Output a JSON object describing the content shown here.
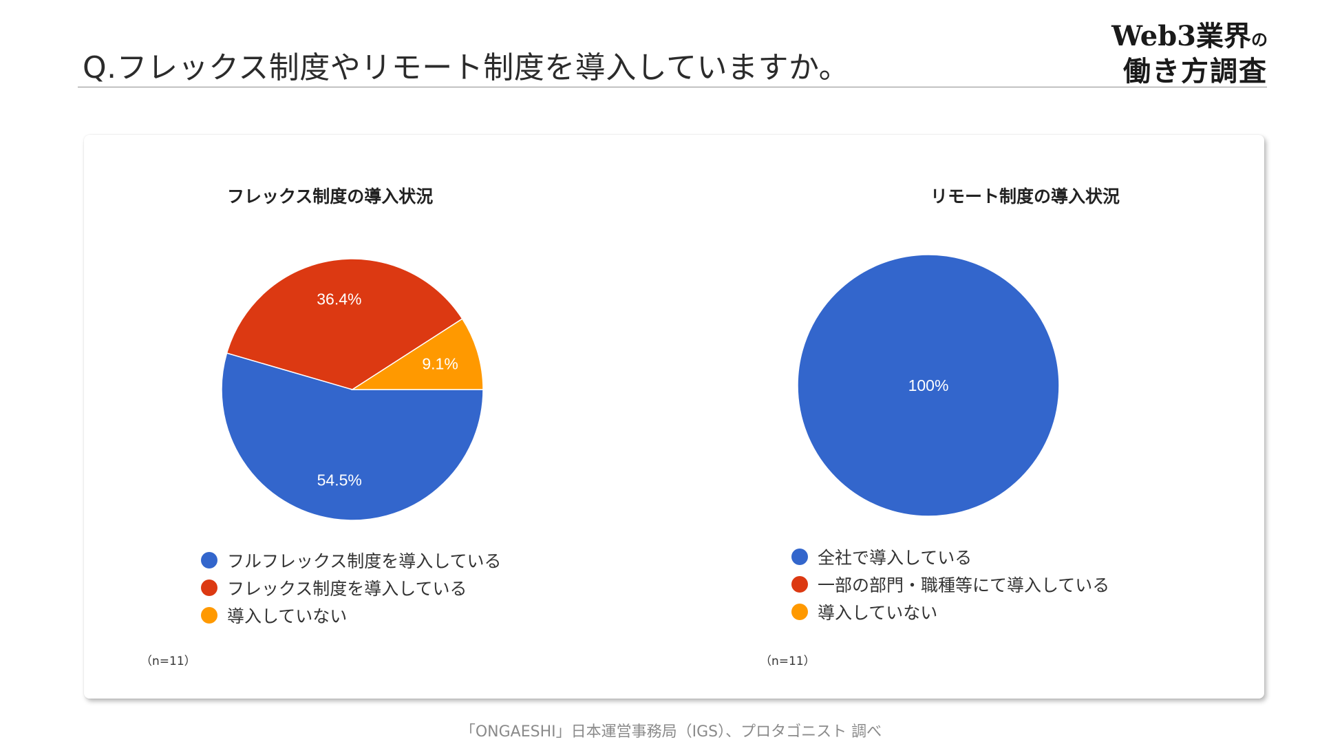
{
  "header": {
    "title": "Q.フレックス制度やリモート制度を導入していますか。",
    "brand_line1_main": "Web3業界",
    "brand_line1_small": "の",
    "brand_line2": "働き方調査"
  },
  "colors": {
    "blue": "#3366cc",
    "red": "#dc3912",
    "orange": "#ff9900"
  },
  "chart_data": [
    {
      "type": "pie",
      "title": "フレックス制度の導入状況",
      "categories": [
        "フルフレックス制度を導入している",
        "フレックス制度を導入している",
        "導入していない"
      ],
      "values": [
        54.5,
        36.4,
        9.1
      ],
      "data_labels": [
        "54.5%",
        "36.4%",
        "9.1%"
      ],
      "colors": [
        "#3366cc",
        "#dc3912",
        "#ff9900"
      ],
      "legend_position": "bottom",
      "note": "（n=11）"
    },
    {
      "type": "pie",
      "title": "リモート制度の導入状況",
      "categories": [
        "全社で導入している",
        "一部の部門・職種等にて導入している",
        "導入していない"
      ],
      "values": [
        100,
        0,
        0
      ],
      "data_labels": [
        "100%",
        "",
        ""
      ],
      "colors": [
        "#3366cc",
        "#dc3912",
        "#ff9900"
      ],
      "legend_position": "bottom",
      "note": "（n=11）"
    }
  ],
  "footer": {
    "source": "「ONGAESHI」日本運営事務局（IGS）、プロタゴニスト 調べ"
  }
}
